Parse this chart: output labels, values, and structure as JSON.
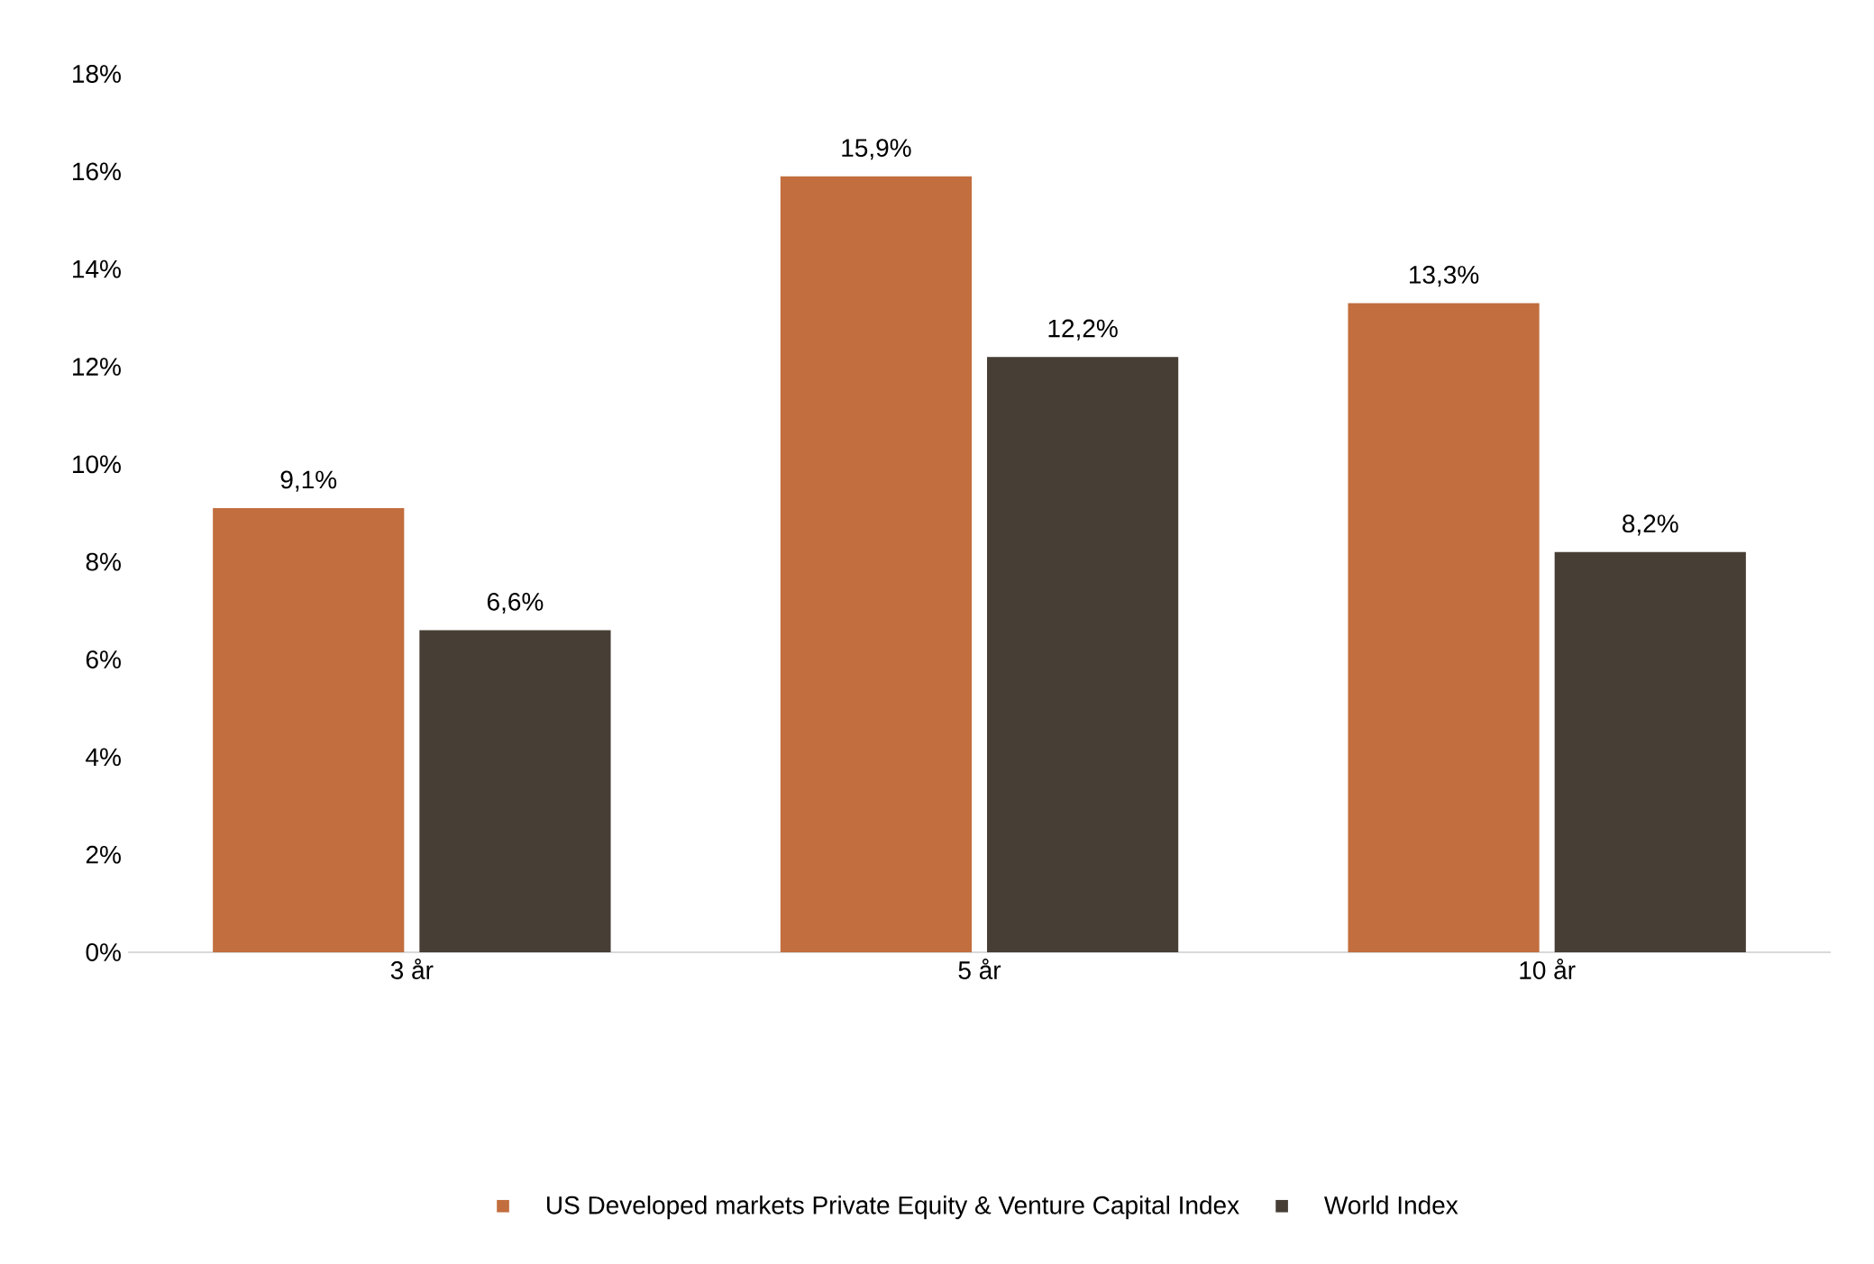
{
  "chart_data": {
    "type": "bar",
    "categories": [
      "3 år",
      "5 år",
      "10 år"
    ],
    "series": [
      {
        "name": "US Developed markets Private Equity & Venture Capital Index",
        "color": "#c26e3e",
        "values": [
          9.1,
          15.9,
          13.3
        ],
        "value_labels": [
          "9,1%",
          "15,9%",
          "13,3%"
        ]
      },
      {
        "name": "World Index",
        "color": "#473e35",
        "values": [
          6.6,
          12.2,
          8.2
        ],
        "value_labels": [
          "6,6%",
          "12,2%",
          "8,2%"
        ]
      }
    ],
    "ylim": [
      0,
      18
    ],
    "yticks": [
      {
        "value": 0,
        "label": "0%"
      },
      {
        "value": 2,
        "label": "2%"
      },
      {
        "value": 4,
        "label": "4%"
      },
      {
        "value": 6,
        "label": "6%"
      },
      {
        "value": 8,
        "label": "8%"
      },
      {
        "value": 10,
        "label": "10%"
      },
      {
        "value": 12,
        "label": "12%"
      },
      {
        "value": 14,
        "label": "14%"
      },
      {
        "value": 16,
        "label": "16%"
      },
      {
        "value": 18,
        "label": "18%"
      }
    ],
    "grid": false,
    "legend": "bottom"
  }
}
